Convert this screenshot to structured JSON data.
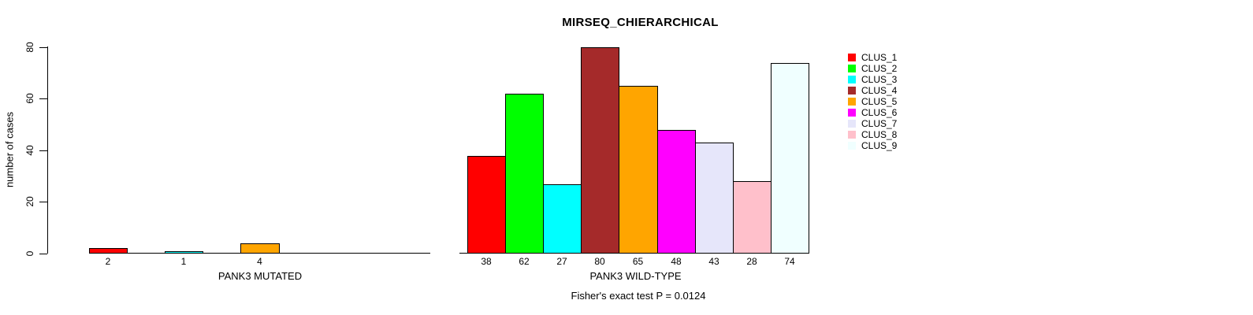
{
  "title": "MIRSEQ_CHIERARCHICAL",
  "footnote": "Fisher's exact test P = 0.0124",
  "y_axis": {
    "label": "number of cases",
    "ticks": [
      "0",
      "20",
      "40",
      "60",
      "80"
    ],
    "tick_values": [
      0,
      20,
      40,
      60,
      80
    ]
  },
  "legend": {
    "position": "right",
    "items": [
      {
        "label": "CLUS_1",
        "color": "#FF0000"
      },
      {
        "label": "CLUS_2",
        "color": "#00FF00"
      },
      {
        "label": "CLUS_3",
        "color": "#00FFFF"
      },
      {
        "label": "CLUS_4",
        "color": "#A52A2A"
      },
      {
        "label": "CLUS_5",
        "color": "#FFA500"
      },
      {
        "label": "CLUS_6",
        "color": "#FF00FF"
      },
      {
        "label": "CLUS_7",
        "color": "#E6E6FA"
      },
      {
        "label": "CLUS_8",
        "color": "#FFC0CB"
      },
      {
        "label": "CLUS_9",
        "color": "#F0FFFF"
      }
    ]
  },
  "chart_data": [
    {
      "type": "bar",
      "title": "MIRSEQ_CHIERARCHICAL",
      "xlabel": "PANK3 MUTATED",
      "ylabel": "number of cases",
      "ylim": [
        0,
        80
      ],
      "grid": false,
      "categories": [
        "CLUS_1",
        "CLUS_2",
        "CLUS_3",
        "CLUS_4",
        "CLUS_5",
        "CLUS_6",
        "CLUS_7",
        "CLUS_8",
        "CLUS_9"
      ],
      "values": [
        2,
        0,
        1,
        0,
        4,
        0,
        0,
        0,
        0
      ],
      "bar_labels": [
        "2",
        "",
        "1",
        "",
        "4",
        "",
        "",
        "",
        ""
      ],
      "colors": [
        "#FF0000",
        "#00FF00",
        "#00FFFF",
        "#A52A2A",
        "#FFA500",
        "#FF00FF",
        "#E6E6FA",
        "#FFC0CB",
        "#F0FFFF"
      ]
    },
    {
      "type": "bar",
      "xlabel": "PANK3 WILD-TYPE",
      "ylabel": "number of cases",
      "ylim": [
        0,
        80
      ],
      "grid": false,
      "categories": [
        "CLUS_1",
        "CLUS_2",
        "CLUS_3",
        "CLUS_4",
        "CLUS_5",
        "CLUS_6",
        "CLUS_7",
        "CLUS_8",
        "CLUS_9"
      ],
      "values": [
        38,
        62,
        27,
        80,
        65,
        48,
        43,
        28,
        74
      ],
      "bar_labels": [
        "38",
        "62",
        "27",
        "80",
        "65",
        "48",
        "43",
        "28",
        "74"
      ],
      "colors": [
        "#FF0000",
        "#00FF00",
        "#00FFFF",
        "#A52A2A",
        "#FFA500",
        "#FF00FF",
        "#E6E6FA",
        "#FFC0CB",
        "#F0FFFF"
      ]
    }
  ]
}
